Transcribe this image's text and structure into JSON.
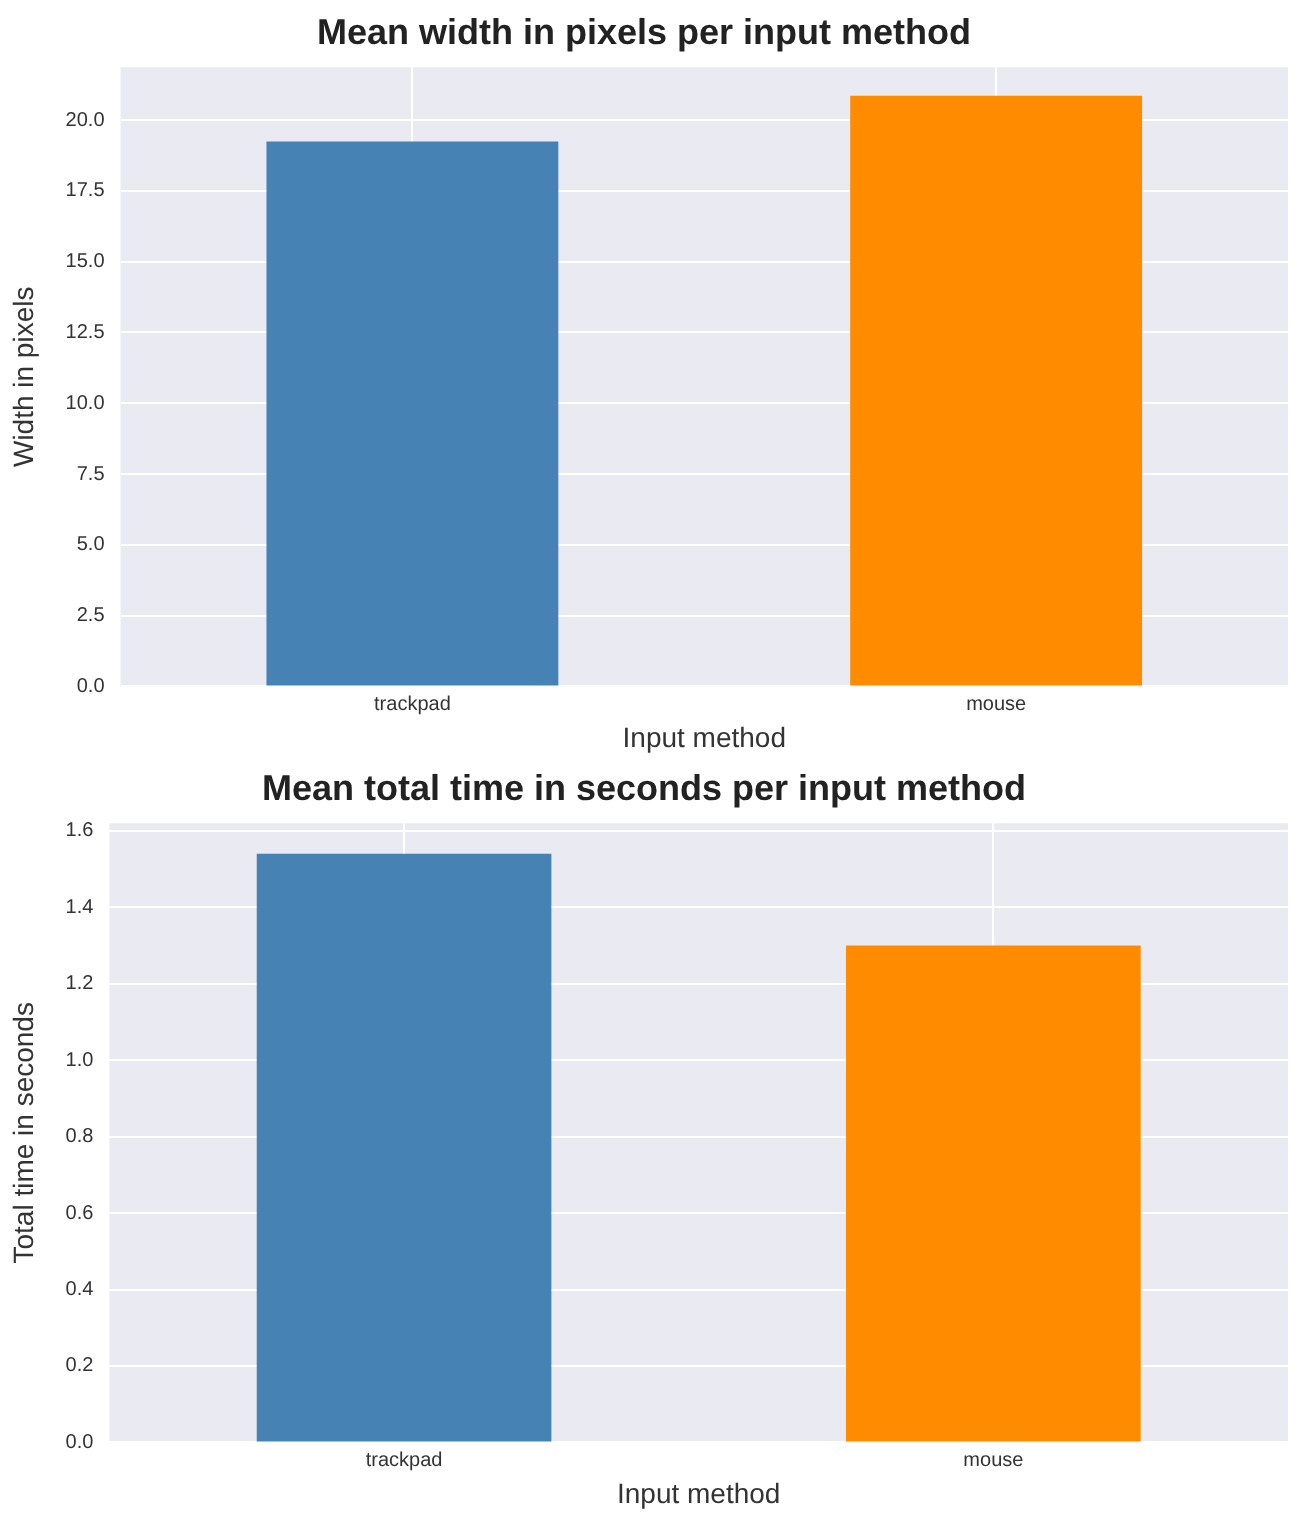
{
  "chart_data": [
    {
      "type": "bar",
      "title": "Mean width in pixels per input method",
      "xlabel": "Input method",
      "ylabel": "Width in pixels",
      "categories": [
        "trackpad",
        "mouse"
      ],
      "values": [
        19.25,
        20.86
      ],
      "colors": [
        "#4682b4",
        "#ff8c00"
      ],
      "ylim": [
        0,
        21.87
      ],
      "yticks": [
        {
          "value": 0,
          "label": "0.0"
        },
        {
          "value": 2.5,
          "label": "2.5"
        },
        {
          "value": 5,
          "label": "5.0"
        },
        {
          "value": 7.5,
          "label": "7.5"
        },
        {
          "value": 10,
          "label": "10.0"
        },
        {
          "value": 12.5,
          "label": "12.5"
        },
        {
          "value": 15,
          "label": "15.0"
        },
        {
          "value": 17.5,
          "label": "17.5"
        },
        {
          "value": 20,
          "label": "20.0"
        }
      ],
      "grid": true
    },
    {
      "type": "bar",
      "title": "Mean total time in seconds per input method",
      "xlabel": "Input method",
      "ylabel": "Total time in seconds",
      "categories": [
        "trackpad",
        "mouse"
      ],
      "values": [
        1.54,
        1.3
      ],
      "colors": [
        "#4682b4",
        "#ff8c00"
      ],
      "ylim": [
        0,
        1.62
      ],
      "yticks": [
        {
          "value": 0,
          "label": "0.0"
        },
        {
          "value": 0.2,
          "label": "0.2"
        },
        {
          "value": 0.4,
          "label": "0.4"
        },
        {
          "value": 0.6,
          "label": "0.6"
        },
        {
          "value": 0.8,
          "label": "0.8"
        },
        {
          "value": 1,
          "label": "1.0"
        },
        {
          "value": 1.2,
          "label": "1.2"
        },
        {
          "value": 1.4,
          "label": "1.4"
        },
        {
          "value": 1.6,
          "label": "1.6"
        }
      ],
      "grid": true
    }
  ]
}
